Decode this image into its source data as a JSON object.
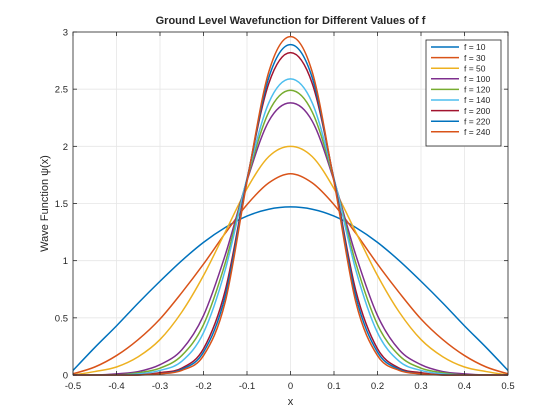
{
  "chart_data": {
    "type": "line",
    "title": "Ground Level Wavefunction for Different Values of f",
    "xlabel": "x",
    "ylabel": "Wave Function ψ(x)",
    "xlim": [
      -0.5,
      0.5
    ],
    "ylim": [
      0,
      3
    ],
    "xticks": [
      "-0.5",
      "-0.4",
      "-0.3",
      "-0.2",
      "-0.1",
      "0",
      "0.1",
      "0.2",
      "0.3",
      "0.4",
      "0.5"
    ],
    "yticks": [
      "0",
      "0.5",
      "1",
      "1.5",
      "2",
      "2.5",
      "3"
    ],
    "grid": true,
    "legend_position": "top-right",
    "x": [
      -0.5,
      -0.45,
      -0.4,
      -0.35,
      -0.3,
      -0.25,
      -0.2,
      -0.15,
      -0.1,
      -0.05,
      0,
      0.05,
      0.1,
      0.15,
      0.2,
      0.25,
      0.3,
      0.35,
      0.4,
      0.45,
      0.5
    ],
    "series": [
      {
        "name": "f = 10",
        "color": "#0072BD",
        "values": [
          0.04,
          0.24,
          0.43,
          0.63,
          0.82,
          1.0,
          1.16,
          1.29,
          1.39,
          1.45,
          1.47,
          1.45,
          1.39,
          1.29,
          1.16,
          1.0,
          0.82,
          0.63,
          0.43,
          0.24,
          0.04
        ]
      },
      {
        "name": "f = 30",
        "color": "#D95319",
        "values": [
          0.01,
          0.07,
          0.17,
          0.31,
          0.49,
          0.72,
          0.97,
          1.24,
          1.49,
          1.68,
          1.76,
          1.68,
          1.49,
          1.24,
          0.97,
          0.72,
          0.49,
          0.31,
          0.17,
          0.07,
          0.01
        ]
      },
      {
        "name": "f = 50",
        "color": "#EDB120",
        "values": [
          0.0,
          0.03,
          0.07,
          0.16,
          0.31,
          0.55,
          0.87,
          1.25,
          1.63,
          1.91,
          2.0,
          1.91,
          1.63,
          1.25,
          0.87,
          0.55,
          0.31,
          0.16,
          0.07,
          0.03,
          0.0
        ]
      },
      {
        "name": "f = 100",
        "color": "#7E2F8E",
        "values": [
          0.0,
          0.0,
          0.01,
          0.03,
          0.09,
          0.22,
          0.52,
          1.05,
          1.7,
          2.22,
          2.38,
          2.22,
          1.7,
          1.05,
          0.52,
          0.22,
          0.09,
          0.03,
          0.01,
          0.0,
          0.0
        ]
      },
      {
        "name": "f = 120",
        "color": "#77AC30",
        "values": [
          0.0,
          0.0,
          0.0,
          0.02,
          0.06,
          0.17,
          0.44,
          0.98,
          1.71,
          2.3,
          2.49,
          2.3,
          1.71,
          0.98,
          0.44,
          0.17,
          0.06,
          0.02,
          0.0,
          0.0,
          0.0
        ]
      },
      {
        "name": "f = 140",
        "color": "#4DBEEE",
        "values": [
          0.0,
          0.0,
          0.0,
          0.01,
          0.04,
          0.12,
          0.37,
          0.92,
          1.72,
          2.38,
          2.59,
          2.38,
          1.72,
          0.92,
          0.37,
          0.12,
          0.04,
          0.01,
          0.0,
          0.0,
          0.0
        ]
      },
      {
        "name": "f = 200",
        "color": "#A2142F",
        "values": [
          0.0,
          0.0,
          0.0,
          0.0,
          0.02,
          0.06,
          0.23,
          0.74,
          1.71,
          2.55,
          2.82,
          2.55,
          1.71,
          0.74,
          0.23,
          0.06,
          0.02,
          0.0,
          0.0,
          0.0,
          0.0
        ]
      },
      {
        "name": "f = 220",
        "color": "#0072BD",
        "values": [
          0.0,
          0.0,
          0.0,
          0.0,
          0.01,
          0.05,
          0.2,
          0.69,
          1.7,
          2.6,
          2.89,
          2.6,
          1.7,
          0.69,
          0.2,
          0.05,
          0.01,
          0.0,
          0.0,
          0.0,
          0.0
        ]
      },
      {
        "name": "f = 240",
        "color": "#D95319",
        "values": [
          0.0,
          0.0,
          0.0,
          0.0,
          0.01,
          0.04,
          0.17,
          0.64,
          1.69,
          2.65,
          2.96,
          2.65,
          1.69,
          0.64,
          0.17,
          0.04,
          0.01,
          0.0,
          0.0,
          0.0,
          0.0
        ]
      }
    ]
  }
}
